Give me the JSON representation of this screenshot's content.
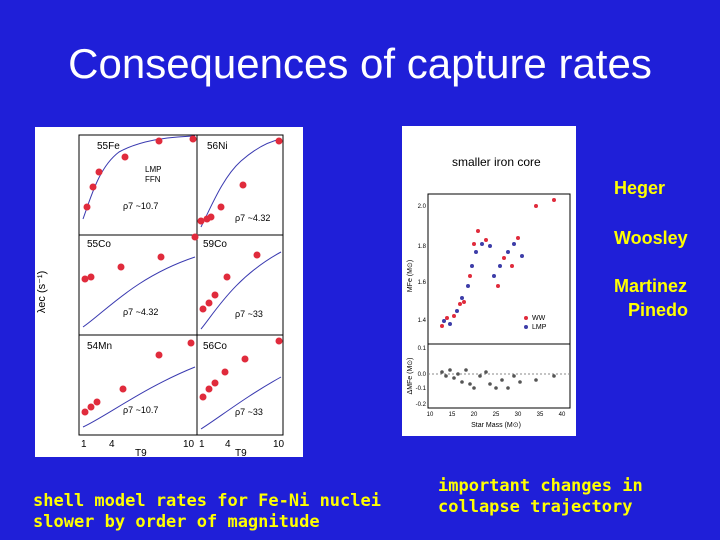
{
  "slide": {
    "title": "Consequences of capture rates",
    "names": [
      "Heger",
      "Woosley",
      "Martinez",
      "Pinedo"
    ],
    "caption_left": [
      "shell model rates for Fe-Ni nuclei",
      "slower by order of magnitude"
    ],
    "caption_right": [
      "important changes in",
      "collapse trajectory"
    ],
    "colors": {
      "background": "#1f1fd8",
      "title": "#ffffff",
      "highlight": "#ffff00"
    }
  },
  "left_figure": {
    "ylabel": "λec (s⁻¹)",
    "xlabel": "T9",
    "xticks": [
      "1",
      "4",
      "10"
    ],
    "panels": [
      {
        "nucleus": "55Fe",
        "rho": "ρ7 ~10.7",
        "legend": [
          "LMP",
          "FFN"
        ]
      },
      {
        "nucleus": "56Ni",
        "rho": "ρ7 ~4.32"
      },
      {
        "nucleus": "55Co",
        "rho": "ρ7 ~4.32"
      },
      {
        "nucleus": "59Co",
        "rho": "ρ7 ~33"
      },
      {
        "nucleus": "54Mn",
        "rho": "ρ7 ~10.7"
      },
      {
        "nucleus": "56Co",
        "rho": "ρ7 ~33"
      }
    ]
  },
  "right_figure": {
    "title": "smaller iron core",
    "ylabel_top": "MFe (M⊙)",
    "ylabel_bottom": "ΔMFe (M⊙)",
    "xlabel": "Star Mass (M⊙)",
    "yticks_top": [
      "2.0",
      "1.8",
      "1.6",
      "1.4"
    ],
    "yticks_bottom": [
      "0.1",
      "0.0",
      "-0.1",
      "-0.2"
    ],
    "xticks": [
      "10",
      "15",
      "20",
      "25",
      "30",
      "35",
      "40"
    ],
    "legend": [
      {
        "label": "WW",
        "color": "#e02b3c"
      },
      {
        "label": "LMP",
        "color": "#3d3da8"
      }
    ]
  }
}
